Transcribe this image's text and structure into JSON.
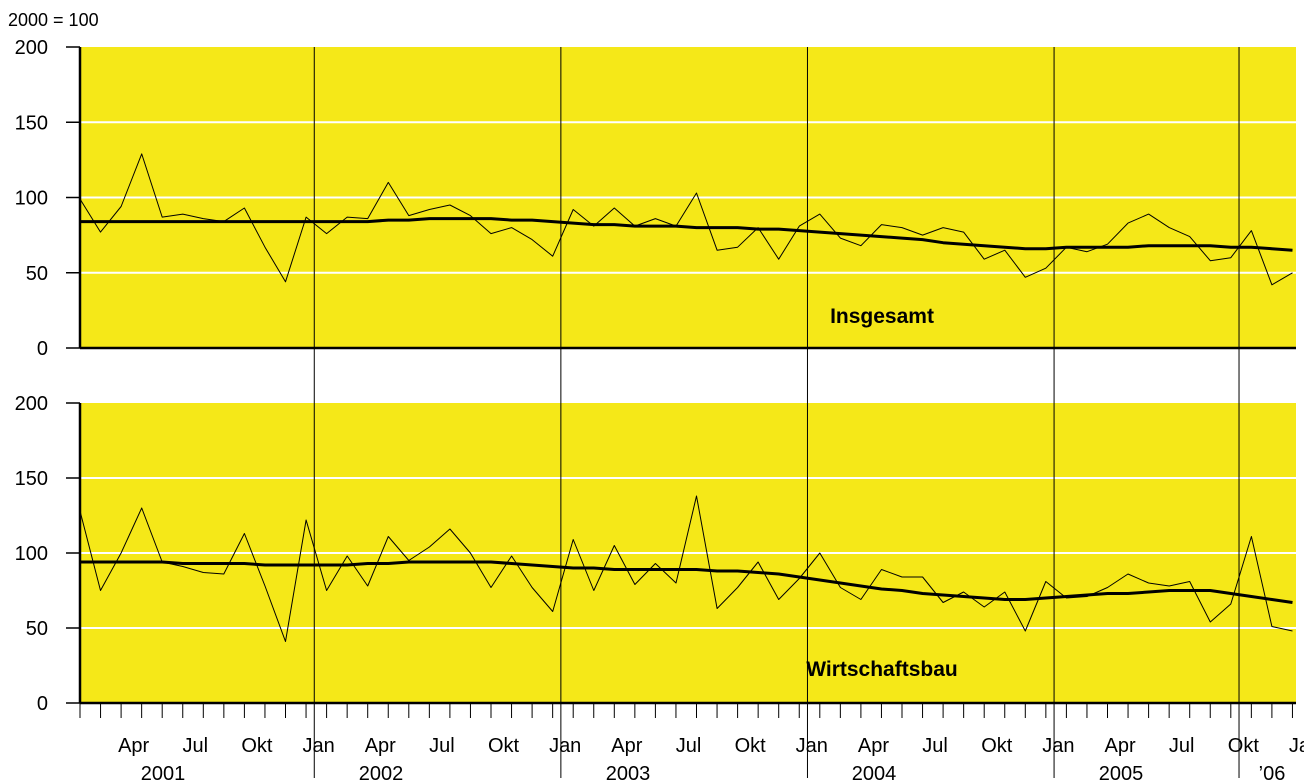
{
  "unit_label": "2000 = 100",
  "chart_data": {
    "type": "line",
    "unit": "2000 = 100",
    "ylim": [
      0,
      200
    ],
    "yticks": [
      0,
      50,
      100,
      150,
      200
    ],
    "grid": true,
    "background_color": "#f5e818",
    "original_line_color": "#000000",
    "x_start": "2001-01",
    "x_end": "2006-03",
    "month_tick_labels": [
      "Apr",
      "Jul",
      "Okt",
      "Jan",
      "Apr",
      "Jul",
      "Okt",
      "Jan",
      "Apr",
      "Jul",
      "Okt",
      "Jan",
      "Apr",
      "Jul",
      "Okt",
      "Jan",
      "Apr",
      "Jul",
      "Okt",
      "Jan"
    ],
    "year_labels": [
      "2001",
      "2002",
      "2003",
      "2004",
      "2005",
      "’06"
    ],
    "panels": [
      {
        "label": "Insgesamt",
        "series": [
          {
            "role": "original",
            "values": [
              99,
              77,
              94,
              129,
              87,
              89,
              86,
              84,
              93,
              67,
              44,
              87,
              76,
              87,
              86,
              110,
              88,
              92,
              95,
              88,
              76,
              80,
              72,
              61,
              92,
              81,
              93,
              81,
              86,
              81,
              103,
              65,
              67,
              80,
              59,
              81,
              89,
              73,
              68,
              82,
              80,
              75,
              80,
              77,
              59,
              65,
              47,
              53,
              67,
              64,
              69,
              83,
              89,
              80,
              74,
              58,
              60,
              78,
              42,
              50
            ]
          },
          {
            "role": "trend",
            "values": [
              84,
              84,
              84,
              84,
              84,
              84,
              84,
              84,
              84,
              84,
              84,
              84,
              84,
              84,
              84,
              85,
              85,
              86,
              86,
              86,
              86,
              85,
              85,
              84,
              83,
              82,
              82,
              81,
              81,
              81,
              80,
              80,
              80,
              79,
              79,
              78,
              77,
              76,
              75,
              74,
              73,
              72,
              70,
              69,
              68,
              67,
              66,
              66,
              67,
              67,
              67,
              67,
              68,
              68,
              68,
              68,
              67,
              67,
              66,
              65
            ]
          }
        ]
      },
      {
        "label": "Wirtschaftsbau",
        "series": [
          {
            "role": "original",
            "values": [
              128,
              75,
              100,
              130,
              94,
              91,
              87,
              86,
              113,
              78,
              41,
              122,
              75,
              98,
              78,
              111,
              95,
              104,
              116,
              100,
              77,
              98,
              77,
              61,
              109,
              75,
              105,
              79,
              93,
              80,
              138,
              63,
              77,
              94,
              69,
              83,
              100,
              77,
              69,
              89,
              84,
              84,
              67,
              74,
              64,
              74,
              48,
              81,
              70,
              71,
              77,
              86,
              80,
              78,
              81,
              54,
              66,
              111,
              51,
              48
            ]
          },
          {
            "role": "trend",
            "values": [
              94,
              94,
              94,
              94,
              94,
              93,
              93,
              93,
              93,
              92,
              92,
              92,
              92,
              92,
              93,
              93,
              94,
              94,
              94,
              94,
              94,
              93,
              92,
              91,
              90,
              90,
              89,
              89,
              89,
              89,
              89,
              88,
              88,
              87,
              86,
              84,
              82,
              80,
              78,
              76,
              75,
              73,
              72,
              71,
              70,
              69,
              69,
              70,
              71,
              72,
              73,
              73,
              74,
              75,
              75,
              75,
              73,
              71,
              69,
              67
            ]
          }
        ]
      }
    ]
  }
}
